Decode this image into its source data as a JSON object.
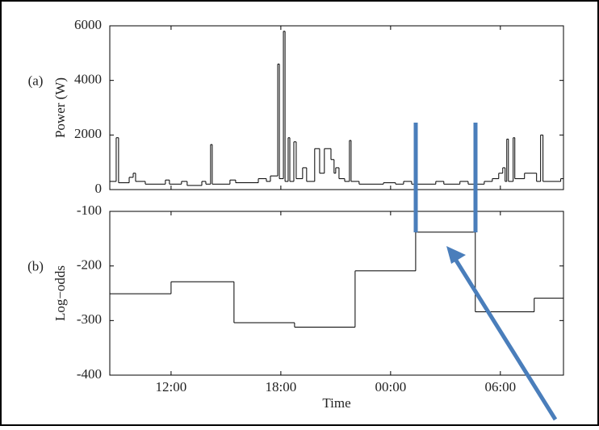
{
  "chart_data": [
    {
      "type": "step",
      "panel_label": "(a)",
      "ylabel": "Power (W)",
      "xlim": [
        8.65,
        33.45
      ],
      "ylim": [
        0,
        6000
      ],
      "yticks": [
        0,
        2000,
        4000,
        6000
      ],
      "color": "#000000",
      "x": [
        8.65,
        9.0,
        9.13,
        9.71,
        9.93,
        10.06,
        10.59,
        11.69,
        11.91,
        12.57,
        12.88,
        13.68,
        13.9,
        14.16,
        14.25,
        15.22,
        15.53,
        16.77,
        17.21,
        17.43,
        17.83,
        17.92,
        18.14,
        18.23,
        18.4,
        18.49,
        18.71,
        18.84,
        19.19,
        19.41,
        19.85,
        20.12,
        20.38,
        20.74,
        20.91,
        21.0,
        21.18,
        21.49,
        21.75,
        21.84,
        22.28,
        23.61,
        24.27,
        24.71,
        25.15,
        26.47,
        26.91,
        27.79,
        28.24,
        29.12,
        29.56,
        29.91,
        30.13,
        30.26,
        30.35,
        30.44,
        30.7,
        30.79,
        31.32,
        31.98,
        32.2,
        32.33,
        33.3
      ],
      "values": [
        300,
        1900,
        250,
        450,
        600,
        300,
        200,
        350,
        200,
        300,
        150,
        300,
        200,
        1650,
        200,
        350,
        250,
        400,
        300,
        500,
        4600,
        400,
        5800,
        300,
        1900,
        300,
        1750,
        400,
        800,
        300,
        1500,
        600,
        1500,
        1100,
        600,
        800,
        400,
        300,
        1800,
        300,
        200,
        250,
        200,
        300,
        200,
        300,
        200,
        300,
        200,
        300,
        400,
        600,
        800,
        300,
        1850,
        300,
        1900,
        400,
        600,
        300,
        2000,
        300,
        400
      ]
    },
    {
      "type": "step",
      "panel_label": "(b)",
      "ylabel": "Log−odds",
      "xlabel": "Time",
      "xlim": [
        8.65,
        33.45
      ],
      "ylim": [
        -400,
        -100
      ],
      "yticks": [
        -400,
        -300,
        -200,
        -100
      ],
      "xticks": [
        {
          "value": 12,
          "label": "12:00"
        },
        {
          "value": 18,
          "label": "18:00"
        },
        {
          "value": 24,
          "label": "00:00"
        },
        {
          "value": 30,
          "label": "06:00"
        }
      ],
      "color": "#000000",
      "x": [
        8.65,
        12.0,
        15.44,
        18.75,
        22.06,
        25.37,
        28.63,
        31.85
      ],
      "values": [
        -251,
        -229,
        -304,
        -312,
        -209,
        -138,
        -284,
        -259
      ]
    }
  ]
}
